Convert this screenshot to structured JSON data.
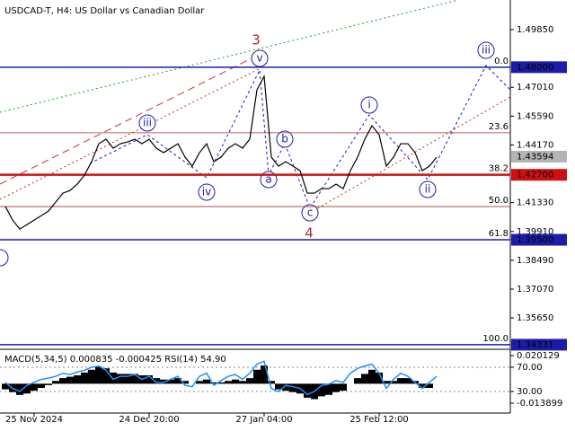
{
  "chart_data": [
    {
      "type": "line",
      "title": "USDCAD-T, H4:  US Dollar vs Canadian Dollar",
      "categories": [
        null,
        null,
        null,
        null,
        "25 Nov 2024",
        null,
        null,
        null,
        null,
        null,
        null,
        null,
        null,
        null,
        null,
        null,
        null,
        null,
        null,
        null,
        "24 Dec 20:00",
        null,
        null,
        null,
        null,
        null,
        null,
        null,
        null,
        null,
        null,
        null,
        null,
        null,
        null,
        null,
        "27 Jan 04:00",
        null,
        null,
        null,
        null,
        null,
        null,
        null,
        null,
        null,
        null,
        null,
        null,
        null,
        null,
        null,
        "25 Feb 12:00",
        null,
        null,
        null,
        null,
        null,
        null,
        null,
        null
      ],
      "series": [
        {
          "name": "USDCAD-T",
          "color": "#000000",
          "values": [
            1.41135,
            1.40471,
            1.40029,
            1.4025,
            1.4047,
            1.40692,
            1.40914,
            1.41356,
            1.41798,
            1.41931,
            1.42241,
            1.42683,
            1.43347,
            1.44232,
            1.44453,
            1.4401,
            1.44232,
            1.4432,
            1.44453,
            1.44232,
            1.44453,
            1.4401,
            1.43789,
            1.4401,
            1.44232,
            1.43568,
            1.43126,
            1.43789,
            1.44232,
            1.43347,
            1.43568,
            1.4401,
            1.44232,
            1.4401,
            1.44453,
            1.46886,
            1.4755,
            1.43568,
            1.43126,
            1.43347,
            1.43126,
            1.42904,
            1.41798,
            1.41798,
            1.42019,
            1.42019,
            1.42241,
            1.42019,
            1.42904,
            1.43568,
            1.44453,
            1.45116,
            1.44674,
            1.43126,
            1.43568,
            1.44232,
            1.44232,
            1.43789,
            1.42904,
            1.43126,
            1.43568
          ]
        }
      ],
      "ylim": [
        1.3415,
        1.5131
      ],
      "yticks": [
        {
          "value": 1.4985,
          "label": "1.49850"
        },
        {
          "value": 1.4701,
          "label": "1.47010"
        },
        {
          "value": 1.4559,
          "label": "1.45590"
        },
        {
          "value": 1.4417,
          "label": "1.44170"
        },
        {
          "value": 1.4133,
          "label": "1.41330"
        },
        {
          "value": 1.3991,
          "label": "1.39910"
        },
        {
          "value": 1.3849,
          "label": "1.38490"
        },
        {
          "value": 1.3707,
          "label": "1.37070"
        },
        {
          "value": 1.3565,
          "label": "1.35650"
        }
      ],
      "levels": [
        {
          "value": 1.48,
          "label": "1.48000",
          "color": "#1c1ca8"
        },
        {
          "value": 1.43594,
          "label": "1.43594",
          "color": "#b4b4b4"
        },
        {
          "value": 1.427,
          "label": "1.42700",
          "color": "#d01010"
        },
        {
          "value": 1.395,
          "label": "1.39500",
          "color": "#1c1ca8"
        },
        {
          "value": 1.34331,
          "label": "1.34331",
          "color": "#1c1ca8"
        }
      ],
      "fib_levels": [
        {
          "name": "0.0",
          "value": 1.48
        },
        {
          "name": "23.6",
          "value": 1.4477
        },
        {
          "name": "38.2",
          "value": 1.427
        },
        {
          "name": "50.0",
          "value": 1.41135
        },
        {
          "name": "61.8",
          "value": 1.395
        },
        {
          "name": "100.0",
          "value": 1.34331
        }
      ],
      "wave_labels": [
        "3",
        "v",
        "iii",
        "iv",
        "a",
        "b",
        "c",
        "4",
        "i",
        "ii",
        "iii"
      ]
    },
    {
      "type": "bar",
      "title": "MACD(5,34,5) 0.000835 -0.000425 RSI(14) 54.90",
      "series": [
        {
          "name": "MACD",
          "color": "#000000",
          "values": [
            -0.004,
            -0.006,
            -0.008,
            -0.007,
            -0.005,
            -0.003,
            -0.001,
            0.002,
            0.004,
            0.005,
            0.006,
            0.008,
            0.01,
            0.012,
            0.011,
            0.008,
            0.007,
            0.007,
            0.007,
            0.006,
            0.006,
            0.004,
            0.003,
            0.003,
            0.004,
            0.002,
            0.0,
            0.002,
            0.003,
            0.001,
            0.001,
            0.002,
            0.003,
            0.002,
            0.004,
            0.01,
            0.013,
            0.002,
            -0.004,
            -0.005,
            -0.006,
            -0.007,
            -0.01,
            -0.011,
            -0.009,
            -0.008,
            -0.006,
            -0.005,
            0.0,
            0.004,
            0.007,
            0.01,
            0.008,
            0.002,
            0.002,
            0.004,
            0.004,
            0.002,
            -0.003,
            -0.003,
            0.0
          ]
        },
        {
          "name": "RSI",
          "color": "#1e90ff",
          "axis": "y2",
          "values": [
            45,
            35,
            30,
            40,
            45,
            50,
            52,
            55,
            60,
            58,
            62,
            65,
            70,
            72,
            65,
            50,
            55,
            55,
            58,
            50,
            55,
            45,
            45,
            50,
            55,
            40,
            38,
            55,
            60,
            40,
            48,
            55,
            58,
            50,
            60,
            75,
            80,
            35,
            30,
            40,
            38,
            35,
            25,
            30,
            40,
            42,
            48,
            45,
            60,
            68,
            72,
            75,
            60,
            35,
            50,
            60,
            55,
            45,
            35,
            45,
            55
          ]
        }
      ],
      "ylim": [
        -0.02096,
        0.02398
      ],
      "yticks": [
        0.020129,
        -0.013899
      ],
      "y2lim": [
        -5.6,
        98.1
      ],
      "y2ticks": [
        {
          "value": 70,
          "label": "70.00"
        },
        {
          "value": 30,
          "label": "30.00"
        }
      ]
    }
  ]
}
